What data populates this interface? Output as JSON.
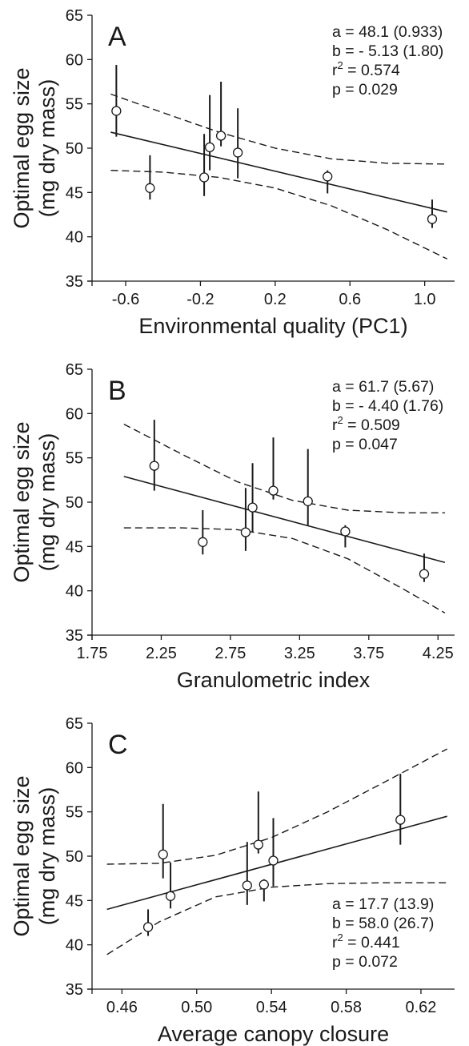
{
  "chart_data": [
    {
      "type": "scatter",
      "panel": "A",
      "xlabel": "Environmental quality (PC1)",
      "ylabel_line1": "Optimal egg size",
      "ylabel_line2": "(mg dry mass)",
      "xlim": [
        -0.78,
        1.16
      ],
      "ylim": [
        35,
        65
      ],
      "xticks": [
        "-0.6",
        "-0.2",
        "0.2",
        "0.6",
        "1.0"
      ],
      "xtick_values": [
        -0.6,
        -0.2,
        0.2,
        0.6,
        1.0
      ],
      "yticks": [
        "35",
        "40",
        "45",
        "50",
        "55",
        "60",
        "65"
      ],
      "ytick_values": [
        35,
        40,
        45,
        50,
        55,
        60,
        65
      ],
      "stats_position": "top-right",
      "stats": [
        {
          "lead": "a = 48.1 (0.933)"
        },
        {
          "lead": "b = - 5.13 (1.80)"
        },
        {
          "lead": "r",
          "sup": "2",
          "tail": " = 0.574"
        },
        {
          "lead": "p = 0.029"
        }
      ],
      "points": [
        {
          "x": -0.65,
          "y": 54.2,
          "lo": 51.3,
          "hi": 59.4
        },
        {
          "x": -0.47,
          "y": 45.5,
          "lo": 44.2,
          "hi": 49.2
        },
        {
          "x": -0.18,
          "y": 46.7,
          "lo": 44.6,
          "hi": 51.6
        },
        {
          "x": -0.15,
          "y": 50.1,
          "lo": 47.5,
          "hi": 56.0
        },
        {
          "x": -0.09,
          "y": 51.4,
          "lo": 50.2,
          "hi": 57.5
        },
        {
          "x": 0.0,
          "y": 49.5,
          "lo": 46.6,
          "hi": 54.5
        },
        {
          "x": 0.48,
          "y": 46.8,
          "lo": 44.9,
          "hi": 47.5
        },
        {
          "x": 1.04,
          "y": 42.0,
          "lo": 41.0,
          "hi": 44.2
        }
      ],
      "fit": {
        "x": [
          -0.68,
          1.12
        ],
        "y": [
          51.8,
          42.8
        ]
      },
      "ci_upper": {
        "x": [
          -0.68,
          -0.4,
          -0.1,
          0.2,
          0.5,
          0.8,
          1.12
        ],
        "y": [
          56.1,
          54.0,
          51.8,
          50.0,
          48.8,
          48.3,
          48.2
        ]
      },
      "ci_lower": {
        "x": [
          -0.68,
          -0.4,
          -0.1,
          0.2,
          0.5,
          0.8,
          1.12
        ],
        "y": [
          47.5,
          47.3,
          46.7,
          45.5,
          43.5,
          40.8,
          37.5
        ]
      }
    },
    {
      "type": "scatter",
      "panel": "B",
      "xlabel": "Granulometric index",
      "ylabel_line1": "Optimal egg size",
      "ylabel_line2": "(mg dry mass)",
      "xlim": [
        1.75,
        4.37
      ],
      "ylim": [
        35,
        65
      ],
      "xticks": [
        "1.75",
        "2.25",
        "2.75",
        "3.25",
        "3.75",
        "4.25"
      ],
      "xtick_values": [
        1.75,
        2.25,
        2.75,
        3.25,
        3.75,
        4.25
      ],
      "yticks": [
        "35",
        "40",
        "45",
        "50",
        "55",
        "60",
        "65"
      ],
      "ytick_values": [
        35,
        40,
        45,
        50,
        55,
        60,
        65
      ],
      "stats_position": "top-right",
      "stats": [
        {
          "lead": "a = 61.7 (5.67)"
        },
        {
          "lead": "b = - 4.40 (1.76)"
        },
        {
          "lead": "r",
          "sup": "2",
          "tail": " = 0.509"
        },
        {
          "lead": "p = 0.047"
        }
      ],
      "points": [
        {
          "x": 2.2,
          "y": 54.1,
          "lo": 51.3,
          "hi": 59.3
        },
        {
          "x": 2.55,
          "y": 45.5,
          "lo": 44.1,
          "hi": 49.1
        },
        {
          "x": 2.86,
          "y": 46.6,
          "lo": 44.5,
          "hi": 51.6
        },
        {
          "x": 2.91,
          "y": 49.4,
          "lo": 46.6,
          "hi": 54.4
        },
        {
          "x": 3.06,
          "y": 51.3,
          "lo": 50.3,
          "hi": 57.3
        },
        {
          "x": 3.31,
          "y": 50.1,
          "lo": 47.4,
          "hi": 56.0
        },
        {
          "x": 3.58,
          "y": 46.7,
          "lo": 44.9,
          "hi": 47.4
        },
        {
          "x": 4.15,
          "y": 41.9,
          "lo": 41.0,
          "hi": 44.2
        }
      ],
      "fit": {
        "x": [
          1.98,
          4.3
        ],
        "y": [
          52.9,
          43.2
        ]
      },
      "ci_upper": {
        "x": [
          1.98,
          2.4,
          2.8,
          3.2,
          3.6,
          4.0,
          4.3
        ],
        "y": [
          58.8,
          55.4,
          52.3,
          50.2,
          49.1,
          48.8,
          48.8
        ]
      },
      "ci_lower": {
        "x": [
          1.98,
          2.4,
          2.8,
          3.2,
          3.6,
          4.0,
          4.3
        ],
        "y": [
          47.1,
          47.1,
          46.9,
          45.9,
          43.6,
          40.2,
          37.5
        ]
      }
    },
    {
      "type": "scatter",
      "panel": "C",
      "xlabel": "Average canopy closure",
      "ylabel_line1": "Optimal egg size",
      "ylabel_line2": "(mg dry mass)",
      "xlim": [
        0.444,
        0.638
      ],
      "ylim": [
        35,
        65
      ],
      "xticks": [
        "0.46",
        "0.50",
        "0.54",
        "0.58",
        "0.62"
      ],
      "xtick_values": [
        0.46,
        0.5,
        0.54,
        0.58,
        0.62
      ],
      "yticks": [
        "35",
        "40",
        "45",
        "50",
        "55",
        "60",
        "65"
      ],
      "ytick_values": [
        35,
        40,
        45,
        50,
        55,
        60,
        65
      ],
      "stats_position": "bottom-right",
      "stats": [
        {
          "lead": "a = 17.7 (13.9)"
        },
        {
          "lead": "b = 58.0 (26.7)"
        },
        {
          "lead": "r",
          "sup": "2",
          "tail": " = 0.441"
        },
        {
          "lead": "p = 0.072"
        }
      ],
      "points": [
        {
          "x": 0.482,
          "y": 50.2,
          "lo": 47.5,
          "hi": 55.9
        },
        {
          "x": 0.486,
          "y": 45.5,
          "lo": 44.1,
          "hi": 49.3
        },
        {
          "x": 0.474,
          "y": 42.0,
          "lo": 41.0,
          "hi": 44.0
        },
        {
          "x": 0.527,
          "y": 46.7,
          "lo": 44.5,
          "hi": 51.6
        },
        {
          "x": 0.533,
          "y": 51.3,
          "lo": 50.3,
          "hi": 57.3
        },
        {
          "x": 0.536,
          "y": 46.8,
          "lo": 44.9,
          "hi": 47.4
        },
        {
          "x": 0.541,
          "y": 49.5,
          "lo": 46.6,
          "hi": 54.3
        },
        {
          "x": 0.609,
          "y": 54.1,
          "lo": 51.3,
          "hi": 59.3
        }
      ],
      "fit": {
        "x": [
          0.452,
          0.634
        ],
        "y": [
          44.0,
          54.5
        ]
      },
      "ci_upper": {
        "x": [
          0.452,
          0.48,
          0.51,
          0.54,
          0.57,
          0.6,
          0.634
        ],
        "y": [
          49.1,
          49.2,
          50.1,
          52.1,
          55.0,
          58.3,
          62.1
        ]
      },
      "ci_lower": {
        "x": [
          0.452,
          0.48,
          0.51,
          0.54,
          0.57,
          0.6,
          0.634
        ],
        "y": [
          38.9,
          42.6,
          45.4,
          46.5,
          46.9,
          47.0,
          47.0
        ]
      }
    }
  ]
}
